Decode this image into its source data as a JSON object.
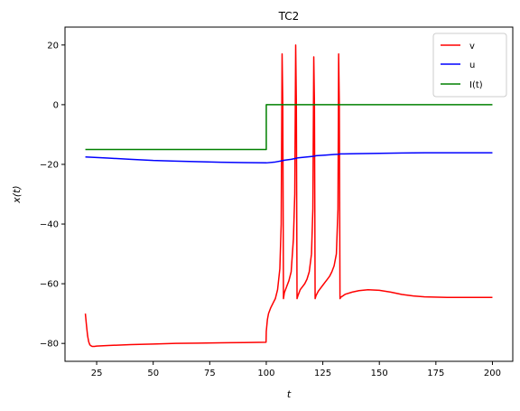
{
  "chart_data": {
    "type": "line",
    "title": "TC2",
    "xlabel": "t",
    "ylabel": "x(t)",
    "xlim": [
      11,
      209
    ],
    "ylim": [
      -86,
      26
    ],
    "xticks": [
      25,
      50,
      75,
      100,
      125,
      150,
      175,
      200
    ],
    "yticks": [
      -80,
      -60,
      -40,
      -20,
      0,
      20
    ],
    "grid": false,
    "legend": "top-right",
    "series": [
      {
        "name": "v",
        "color": "#ff0000",
        "x": [
          20,
          20.5,
          21,
          21.5,
          22,
          22.5,
          23,
          24,
          25,
          30,
          40,
          50,
          60,
          70,
          80,
          90,
          99.9,
          100,
          100.5,
          101,
          102,
          103,
          104,
          105,
          106,
          106.6,
          107,
          107.3,
          107.6,
          108,
          109,
          110,
          111,
          112,
          112.6,
          113,
          113.3,
          113.6,
          114,
          115,
          116,
          117,
          118,
          119,
          120,
          120.6,
          121,
          121.3,
          121.6,
          122,
          123,
          124,
          125,
          126,
          127,
          128,
          129,
          130,
          131,
          131.7,
          132,
          132.3,
          132.6,
          133,
          135,
          138,
          141,
          145,
          150,
          155,
          160,
          165,
          170,
          180,
          190,
          200
        ],
        "y": [
          -70,
          -74,
          -77.5,
          -79.5,
          -80.5,
          -80.8,
          -81,
          -81,
          -80.9,
          -80.7,
          -80.4,
          -80.2,
          -80,
          -79.9,
          -79.8,
          -79.7,
          -79.6,
          -76,
          -72,
          -70,
          -68,
          -66.5,
          -65,
          -62,
          -55,
          -40,
          17,
          0,
          -65,
          -63,
          -61,
          -59,
          -56,
          -45,
          -30,
          20,
          0,
          -65,
          -64,
          -62,
          -61,
          -60,
          -58.5,
          -56,
          -50,
          -35,
          16,
          0,
          -65,
          -64,
          -62.5,
          -61.5,
          -60.5,
          -59.5,
          -58.5,
          -57.5,
          -56,
          -54,
          -50,
          -35,
          17,
          0,
          -65,
          -64.5,
          -63.5,
          -62.8,
          -62.3,
          -62,
          -62.2,
          -62.8,
          -63.6,
          -64.1,
          -64.4,
          -64.6,
          -64.6,
          -64.6
        ]
      },
      {
        "name": "u",
        "color": "#0000ff",
        "x": [
          20,
          30,
          40,
          50,
          60,
          70,
          80,
          90,
          100,
          104,
          107,
          108,
          111,
          113,
          114,
          118,
          121,
          122,
          126,
          130,
          132,
          133,
          140,
          150,
          160,
          170,
          180,
          190,
          200
        ],
        "y": [
          -17.5,
          -17.9,
          -18.3,
          -18.7,
          -18.9,
          -19.1,
          -19.3,
          -19.4,
          -19.5,
          -19.2,
          -18.8,
          -18.6,
          -18.3,
          -18.0,
          -17.8,
          -17.5,
          -17.3,
          -17.1,
          -16.9,
          -16.7,
          -16.6,
          -16.5,
          -16.4,
          -16.3,
          -16.2,
          -16.1,
          -16.1,
          -16.1,
          -16.1
        ]
      },
      {
        "name": "I(t)",
        "color": "#008000",
        "x": [
          20,
          100,
          100,
          200
        ],
        "y": [
          -15,
          -15,
          0,
          0
        ]
      }
    ]
  }
}
